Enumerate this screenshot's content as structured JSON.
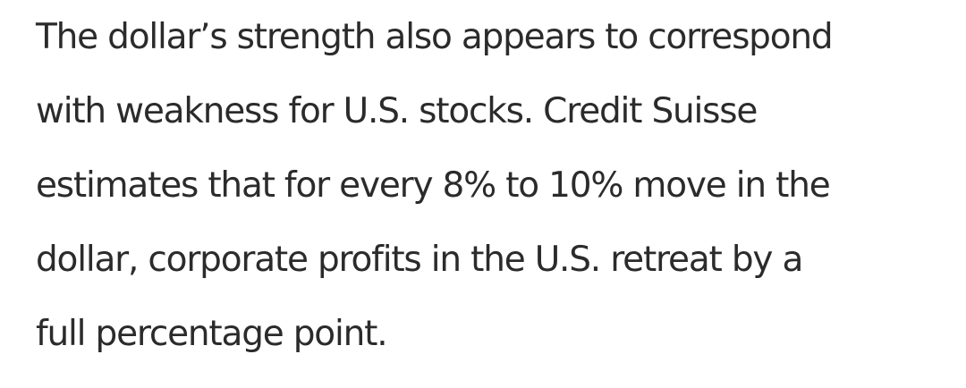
{
  "article": {
    "paragraph_lines": [
      "The dollar’s strength also appears to correspond",
      "with weakness for U.S. stocks. Credit Suisse",
      "estimates that for every 8% to 10% move in the",
      "dollar, corporate profits in the U.S. retreat by a",
      "full percentage point."
    ]
  }
}
